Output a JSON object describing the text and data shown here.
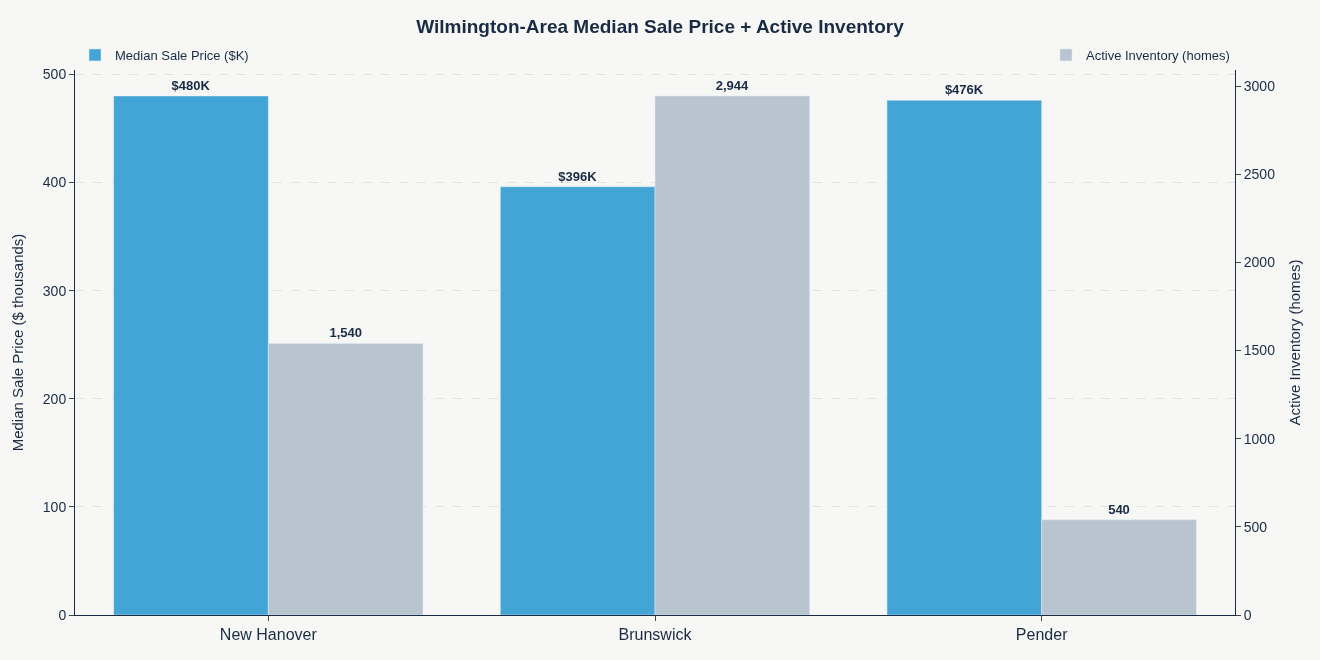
{
  "chart_data": {
    "type": "bar",
    "title": "Wilmington-Area Median Sale Price + Active Inventory",
    "categories": [
      "New Hanover",
      "Brunswick",
      "Pender"
    ],
    "series": [
      {
        "name": "Median Sale Price ($K)",
        "color": "#42a5d6",
        "values": [
          480,
          396,
          476
        ],
        "value_labels": [
          "$480K",
          "$396K",
          "$476K"
        ]
      },
      {
        "name": "Active Inventory (homes)",
        "color": "#b8c4cf",
        "values": [
          1540,
          2944,
          540
        ],
        "value_labels": [
          "1,540",
          "2,944",
          "540"
        ],
        "axis": "y2"
      }
    ],
    "ylabel": "Median Sale Price ($ thousands)",
    "y2label": "Active Inventory (homes)",
    "ylim": [
      0,
      504
    ],
    "yticks": [
      0,
      100,
      200,
      300,
      400,
      500
    ],
    "y2lim": [
      0,
      3091
    ],
    "y2ticks": [
      0,
      500,
      1000,
      1500,
      2000,
      2500,
      3000
    ],
    "grid": "y",
    "legend": "top"
  }
}
